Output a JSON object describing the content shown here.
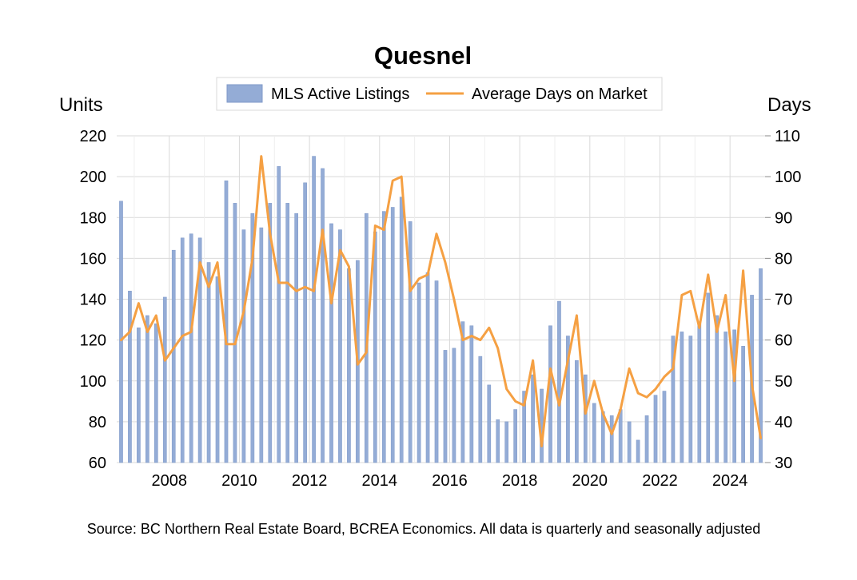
{
  "chart_data": {
    "type": "bar+line",
    "title": "Quesnel",
    "left_axis": {
      "label": "Units",
      "ylim": [
        60,
        220
      ],
      "ticks": [
        60,
        80,
        100,
        120,
        140,
        160,
        180,
        200,
        220
      ]
    },
    "right_axis": {
      "label": "Days",
      "ylim": [
        30,
        110
      ],
      "ticks": [
        30,
        40,
        50,
        60,
        70,
        80,
        90,
        100,
        110
      ]
    },
    "x_range": [
      2006.5,
      2025.0
    ],
    "x_tick_labels": [
      "2008",
      "2010",
      "2012",
      "2014",
      "2016",
      "2018",
      "2020",
      "2022",
      "2024"
    ],
    "x_tick_values": [
      2008,
      2010,
      2012,
      2014,
      2016,
      2018,
      2020,
      2022,
      2024
    ],
    "legend": {
      "position": "top-center",
      "entries": [
        "MLS Active Listings",
        "Average Days on Market"
      ]
    },
    "grid": {
      "vertical": true,
      "horizontal": true
    },
    "colors": {
      "bars": "#94acd6",
      "bar_edge": "#7f99c8",
      "line": "#f5a043",
      "grid": "#d9d9d9"
    },
    "x": [
      2006.625,
      2006.875,
      2007.125,
      2007.375,
      2007.625,
      2007.875,
      2008.125,
      2008.375,
      2008.625,
      2008.875,
      2009.125,
      2009.375,
      2009.625,
      2009.875,
      2010.125,
      2010.375,
      2010.625,
      2010.875,
      2011.125,
      2011.375,
      2011.625,
      2011.875,
      2012.125,
      2012.375,
      2012.625,
      2012.875,
      2013.125,
      2013.375,
      2013.625,
      2013.875,
      2014.125,
      2014.375,
      2014.625,
      2014.875,
      2015.125,
      2015.375,
      2015.625,
      2015.875,
      2016.125,
      2016.375,
      2016.625,
      2016.875,
      2017.125,
      2017.375,
      2017.625,
      2017.875,
      2018.125,
      2018.375,
      2018.625,
      2018.875,
      2019.125,
      2019.375,
      2019.625,
      2019.875,
      2020.125,
      2020.375,
      2020.625,
      2020.875,
      2021.125,
      2021.375,
      2021.625,
      2021.875,
      2022.125,
      2022.375,
      2022.625,
      2022.875,
      2023.125,
      2023.375,
      2023.625,
      2023.875,
      2024.125,
      2024.375,
      2024.625,
      2024.875
    ],
    "series": [
      {
        "name": "MLS Active Listings",
        "type": "bar",
        "axis": "left",
        "values": [
          188,
          144,
          126,
          132,
          128,
          141,
          164,
          170,
          172,
          170,
          158,
          151,
          198,
          187,
          174,
          182,
          175,
          187,
          205,
          187,
          182,
          197,
          210,
          204,
          177,
          174,
          155,
          159,
          182,
          173,
          183,
          185,
          190,
          178,
          148,
          153,
          149,
          115,
          116,
          129,
          127,
          112,
          98,
          81,
          80,
          86,
          95,
          103,
          96,
          127,
          139,
          122,
          110,
          103,
          89,
          85,
          83,
          86,
          80,
          71,
          83,
          93,
          95,
          122,
          124,
          122,
          128,
          143,
          132,
          124,
          125,
          117,
          142,
          155
        ]
      },
      {
        "name": "Average Days on Market",
        "type": "line",
        "axis": "right",
        "values": [
          60,
          62,
          69,
          62,
          66,
          55,
          58,
          61,
          62,
          79,
          73,
          79,
          59,
          59,
          67,
          80,
          105,
          86,
          74,
          74,
          72,
          73,
          72,
          87,
          69,
          82,
          78,
          54,
          57,
          88,
          87,
          99,
          100,
          72,
          75,
          76,
          86,
          79,
          70,
          60,
          61,
          60,
          63,
          58,
          48,
          45,
          44,
          55,
          34,
          53,
          44,
          55,
          66,
          42,
          50,
          42,
          37,
          43,
          53,
          47,
          46,
          48,
          51,
          53,
          71,
          72,
          63,
          76,
          62,
          71,
          50,
          77,
          49,
          36
        ]
      }
    ],
    "source": "Source: BC Northern Real Estate Board, BCREA Economics. All data is quarterly and seasonally adjusted"
  }
}
